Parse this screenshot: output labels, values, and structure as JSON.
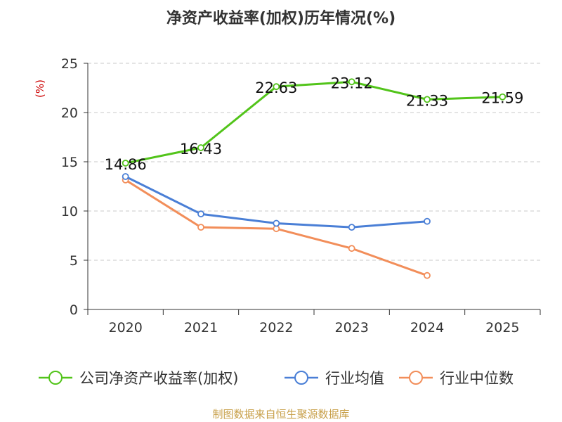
{
  "chart_data": {
    "type": "line",
    "title": "净资产收益率(加权)历年情况(%)",
    "ylabel": "(%)",
    "xlabel": "",
    "categories": [
      "2020",
      "2021",
      "2022",
      "2023",
      "2024",
      "2025"
    ],
    "ylim": [
      0,
      25
    ],
    "yticks": [
      0,
      5,
      10,
      15,
      20,
      25
    ],
    "grid": true,
    "legend_position": "bottom",
    "series": [
      {
        "name": "公司净资产收益率(加权)",
        "color": "#52c41a",
        "values": [
          14.86,
          16.43,
          22.63,
          23.12,
          21.33,
          21.59
        ],
        "labels": [
          "14.86",
          "16.43",
          "22.63",
          "23.12",
          "21.33",
          "21.59"
        ]
      },
      {
        "name": "行业均值",
        "color": "#4a7fd6",
        "values": [
          13.5,
          9.7,
          8.75,
          8.35,
          8.95,
          null
        ]
      },
      {
        "name": "行业中位数",
        "color": "#f28e5a",
        "values": [
          13.15,
          8.35,
          8.2,
          6.2,
          3.45,
          null
        ]
      }
    ],
    "source": "制图数据来自恒生聚源数据库"
  }
}
